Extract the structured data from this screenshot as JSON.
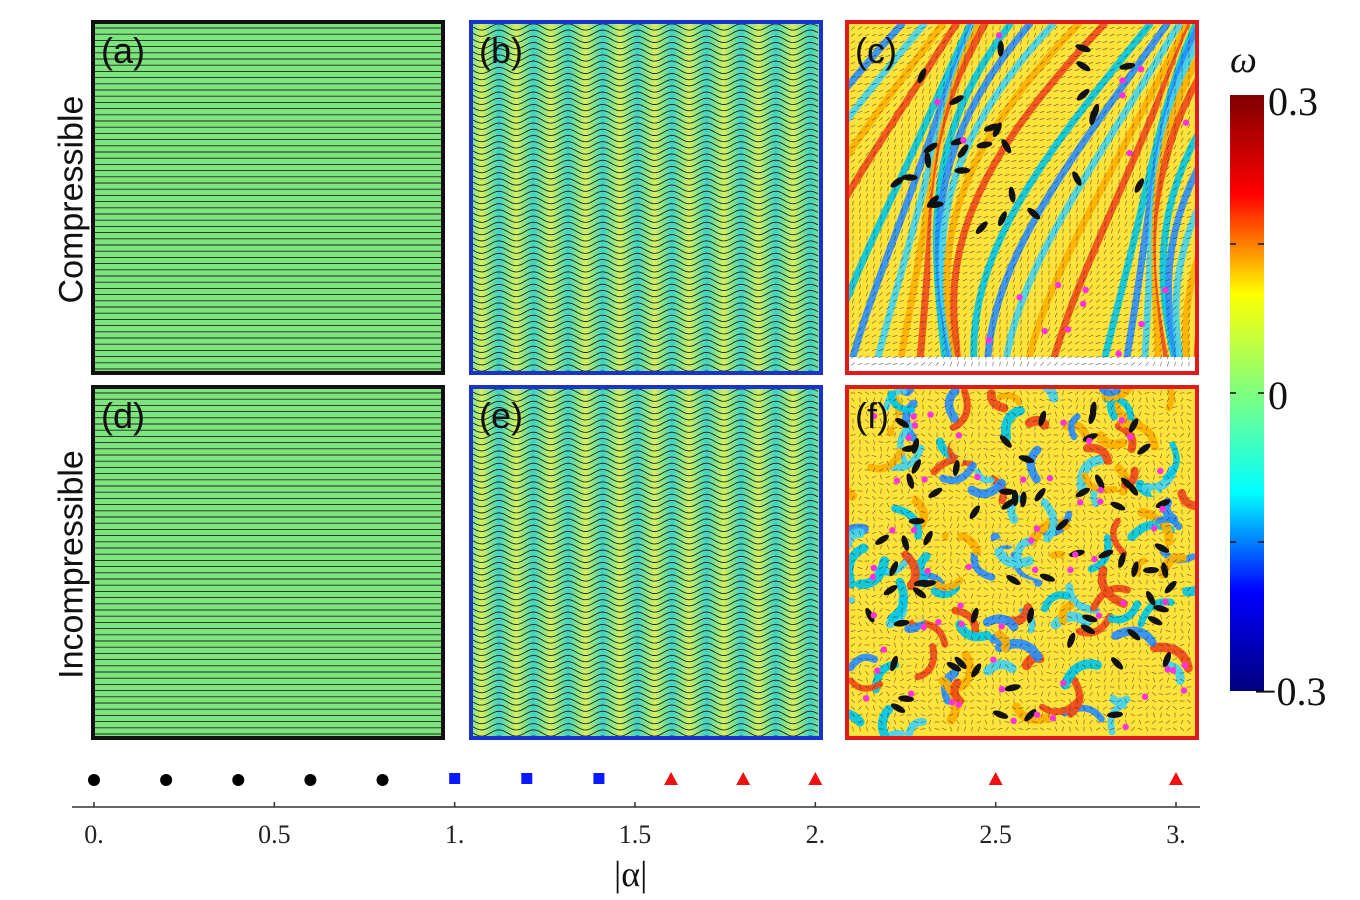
{
  "rows": [
    {
      "label": "Compressible"
    },
    {
      "label": "Incompressible"
    }
  ],
  "panels": [
    {
      "label": "(a)",
      "pattern": "stripes",
      "border_color": "#111111"
    },
    {
      "label": "(b)",
      "pattern": "waves",
      "border_color": "#1a33cc"
    },
    {
      "label": "(c)",
      "pattern": "turbulent",
      "border_color": "#e01b1b"
    },
    {
      "label": "(d)",
      "pattern": "stripes",
      "border_color": "#111111"
    },
    {
      "label": "(e)",
      "pattern": "waves",
      "border_color": "#1a33cc"
    },
    {
      "label": "(f)",
      "pattern": "turbulent",
      "border_color": "#e01b1b"
    }
  ],
  "colorbar": {
    "symbol": "ω",
    "max_label": "0.3",
    "mid_label": "0",
    "min_label": "−0.3",
    "colormap": [
      "#00007f",
      "#0000ff",
      "#00ffff",
      "#7fff7f",
      "#ffff00",
      "#ff0000",
      "#7f0000"
    ]
  },
  "chart_data": {
    "type": "scatter",
    "xlabel": "|α|",
    "xlim": [
      0,
      3.05
    ],
    "ticks": [
      {
        "value": 0,
        "label": "0."
      },
      {
        "value": 0.5,
        "label": "0.5"
      },
      {
        "value": 1,
        "label": "1."
      },
      {
        "value": 1.5,
        "label": "1.5"
      },
      {
        "value": 2,
        "label": "2."
      },
      {
        "value": 2.5,
        "label": "2.5"
      },
      {
        "value": 3,
        "label": "3."
      }
    ],
    "series": [
      {
        "marker": "circle",
        "color": "#000000",
        "x": [
          0,
          0.2,
          0.4,
          0.6,
          0.8
        ]
      },
      {
        "marker": "square",
        "color": "#0a1aff",
        "x": [
          1.0,
          1.2,
          1.4
        ]
      },
      {
        "marker": "triangle",
        "color": "#ee1111",
        "x": [
          1.6,
          1.8,
          2.0,
          2.5,
          3.0
        ]
      }
    ]
  }
}
